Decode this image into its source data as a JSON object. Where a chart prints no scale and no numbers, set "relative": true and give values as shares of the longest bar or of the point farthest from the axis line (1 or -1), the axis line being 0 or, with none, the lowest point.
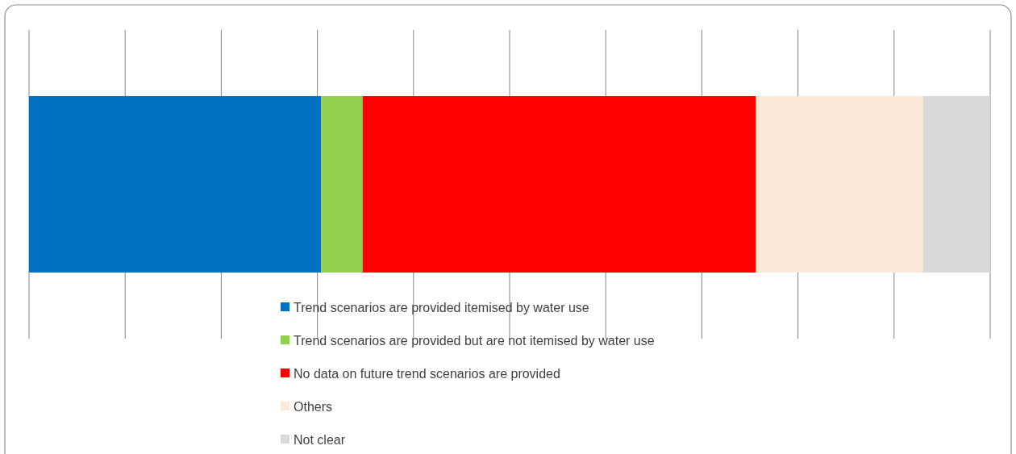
{
  "chart_data": {
    "type": "bar",
    "orientation": "horizontal",
    "stacked": true,
    "relative": true,
    "grid": true,
    "legend": "bottom",
    "categories": [
      null
    ],
    "series": [
      {
        "name": "Trend scenarios are provided itemised by water use",
        "color": "#0070c0",
        "values": [
          0.304
        ]
      },
      {
        "name": "Trend scenarios are provided but are not itemised by water use",
        "color": "#92d050",
        "values": [
          0.043
        ]
      },
      {
        "name": "No data on future trend scenarios are provided",
        "color": "#ff0000",
        "values": [
          0.409
        ]
      },
      {
        "name": "Others",
        "color": "#fde9d9",
        "values": [
          0.174
        ]
      },
      {
        "name": "Not clear",
        "color": "#d9d9d9",
        "values": [
          0.07
        ]
      }
    ]
  }
}
